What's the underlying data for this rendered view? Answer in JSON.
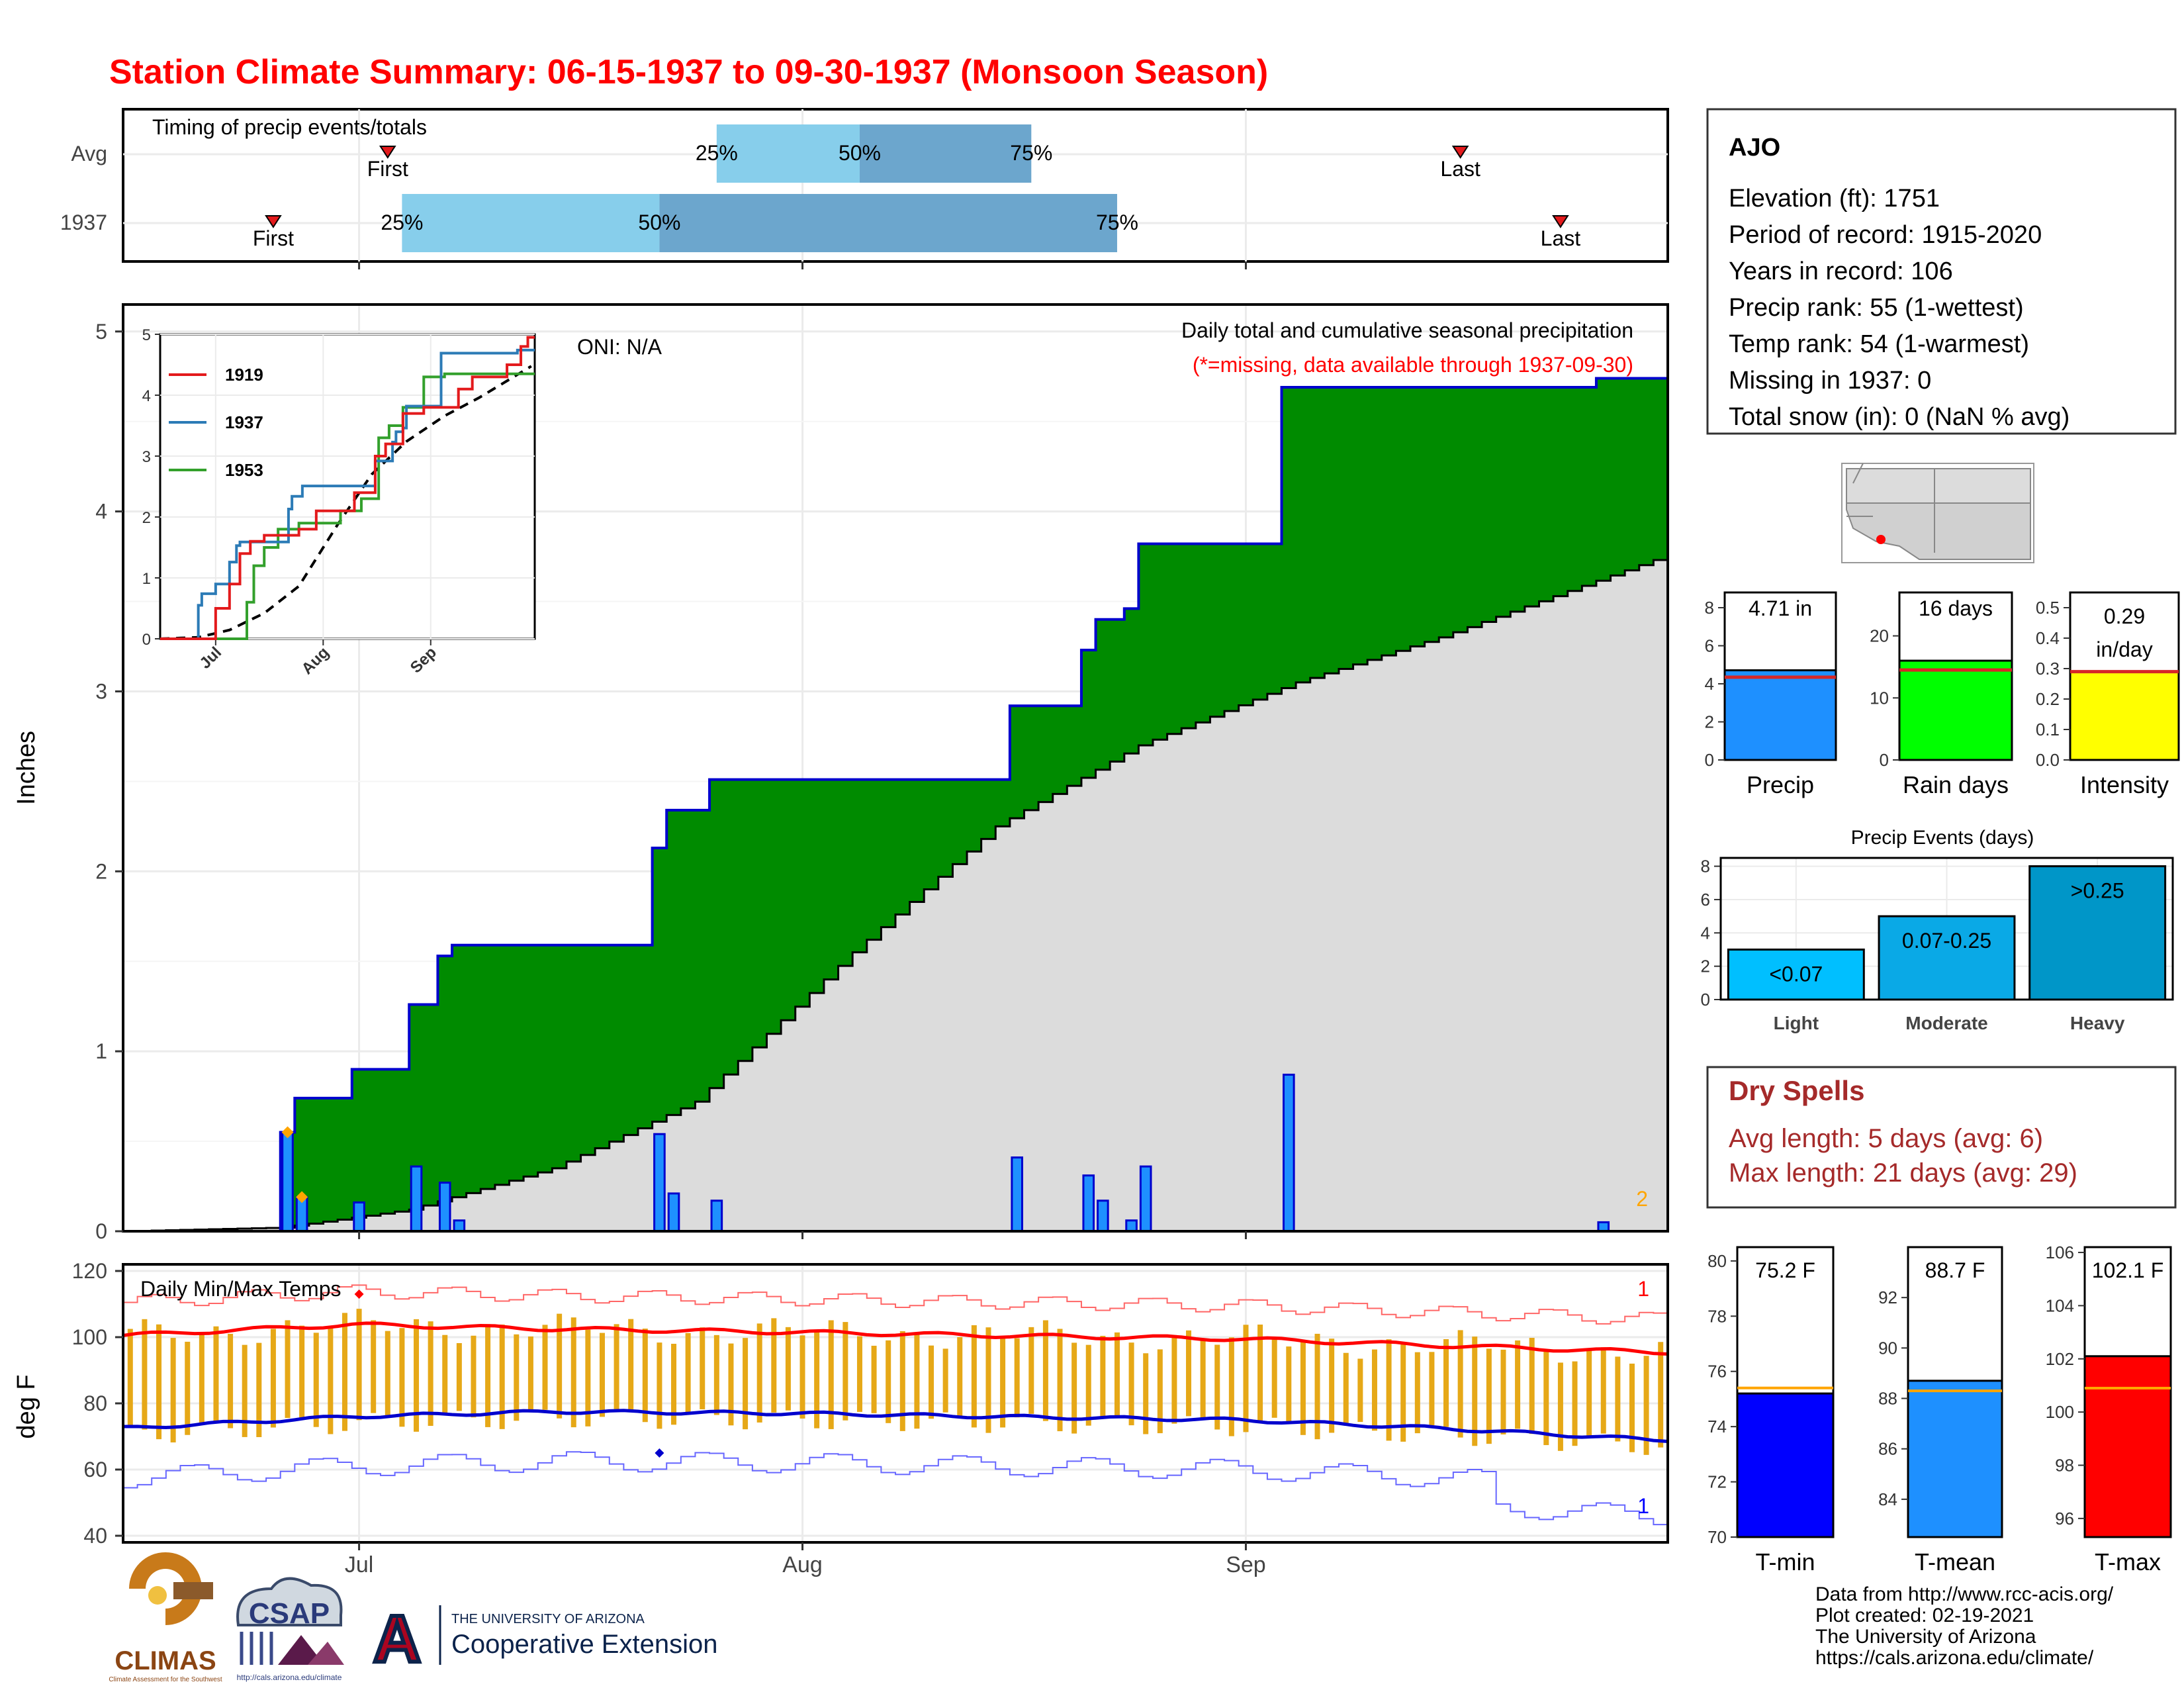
{
  "title": "Station Climate Summary: 06-15-1937 to 09-30-1937 (Monsoon Season)",
  "timing": {
    "label": "Timing of precip events/totals",
    "rows": [
      "Avg",
      "1937"
    ],
    "quartiles": [
      "25%",
      "50%",
      "75%"
    ],
    "first_label": "First",
    "last_label": "Last",
    "avg": {
      "first": "07-03",
      "q25": "07-26",
      "q50": "08-05",
      "q75": "08-17",
      "last": "09-16"
    },
    "y1937": {
      "first": "06-25",
      "q25": "07-04",
      "q50": "07-22",
      "q75": "08-23",
      "last": "09-23"
    }
  },
  "main": {
    "ylabel": "Inches",
    "oni": "ONI: N/A",
    "subtitle": "Daily total and cumulative seasonal precipitation",
    "missing_note": "(*=missing, data available through 1937-09-30)",
    "corner_count": "2",
    "x_ticks": [
      "Jul",
      "Aug",
      "Sep"
    ]
  },
  "inset": {
    "x_ticks": [
      "Jul",
      "Aug",
      "Sep"
    ],
    "legend": [
      {
        "name": "1919",
        "color": "#e31a1c"
      },
      {
        "name": "1937",
        "color": "#2c7bb6"
      },
      {
        "name": "1953",
        "color": "#33a02c"
      }
    ]
  },
  "temps": {
    "title": "Daily Min/Max Temps",
    "ylabel": "deg F",
    "max_count": "1",
    "min_count": "1",
    "x_ticks": [
      "Jul",
      "Aug",
      "Sep"
    ]
  },
  "station": {
    "name": "AJO",
    "lines": [
      "Elevation (ft): 1751",
      "Period of record: 1915-2020",
      "Years in record: 106",
      "Precip rank: 55 (1-wettest)",
      "Temp rank: 54 (1-warmest)",
      "Missing in 1937: 0",
      "Total snow (in): 0 (NaN % avg)"
    ]
  },
  "summary_bars": [
    {
      "label": "Precip",
      "value_label": "4.71 in",
      "value": 4.71,
      "avg": 4.35,
      "ylim": [
        0,
        8.8
      ],
      "ticks": [
        0,
        2,
        4,
        6,
        8
      ],
      "color": "#1e90ff"
    },
    {
      "label": "Rain days",
      "value_label": "16 days",
      "value": 16,
      "avg": 14.5,
      "ylim": [
        0,
        27
      ],
      "ticks": [
        0,
        10,
        20
      ],
      "color": "#00ff00"
    },
    {
      "label": "Intensity",
      "value_label": "0.29 in/day",
      "value": 0.29,
      "avg": 0.29,
      "ylim": [
        0,
        0.55
      ],
      "ticks": [
        "0.0",
        "0.1",
        "0.2",
        "0.3",
        "0.4",
        "0.5"
      ],
      "color": "#ffff00"
    }
  ],
  "precip_events": {
    "title": "Precip Events (days)",
    "categories": [
      "Light",
      "Moderate",
      "Heavy"
    ],
    "labels": [
      "<0.07",
      "0.07-0.25",
      ">0.25"
    ],
    "values": [
      3,
      5,
      8
    ],
    "ylim": [
      0,
      8.5
    ],
    "ticks": [
      0,
      2,
      4,
      6,
      8
    ],
    "colors": [
      "#00bfff",
      "#0aa9e6",
      "#0096c8"
    ]
  },
  "dry_spells": {
    "title": "Dry Spells",
    "avg": "Avg length: 5 days (avg: 6)",
    "max": "Max length: 21 days (avg: 29)"
  },
  "temp_bars": [
    {
      "label": "T-min",
      "value_label": "75.2 F",
      "value": 75.2,
      "avg": 75.4,
      "ylim": [
        70,
        80.5
      ],
      "ticks": [
        70,
        72,
        74,
        76,
        78,
        80
      ],
      "color": "#0000ff"
    },
    {
      "label": "T-mean",
      "value_label": "88.7 F",
      "value": 88.7,
      "avg": 88.3,
      "ylim": [
        82.5,
        94
      ],
      "ticks": [
        84,
        86,
        88,
        90,
        92
      ],
      "color": "#1e90ff"
    },
    {
      "label": "T-max",
      "value_label": "102.1 F",
      "value": 102.1,
      "avg": 100.9,
      "ylim": [
        95.3,
        106.2
      ],
      "ticks": [
        96,
        98,
        100,
        102,
        104,
        106
      ],
      "color": "#ff0000"
    }
  ],
  "credits": [
    "Data from http://www.rcc-acis.org/",
    "Plot created: 02-19-2021",
    "The University of Arizona",
    "https://cals.arizona.edu/climate/"
  ],
  "logos": {
    "climas": "CLIMAS",
    "climas_sub": "Climate Assessment for the Southwest",
    "csap": "CSAP",
    "csap_url": "http://cals.arizona.edu/climate",
    "ua_small": "THE UNIVERSITY OF ARIZONA",
    "ua_big": "Cooperative Extension",
    "ua_letter": "A"
  },
  "chart_data": [
    {
      "type": "area",
      "name": "cumulative-precip",
      "xlabel": "",
      "ylabel": "Inches",
      "ylim": [
        0,
        5.15
      ],
      "x_range": [
        "06-15",
        "09-30"
      ],
      "series": [
        {
          "name": "daily precip",
          "points": [
            [
              "06-26",
              0.55
            ],
            [
              "06-27",
              0.19
            ],
            [
              "07-01",
              0.16
            ],
            [
              "07-05",
              0.36
            ],
            [
              "07-07",
              0.27
            ],
            [
              "07-08",
              0.06
            ],
            [
              "07-22",
              0.54
            ],
            [
              "07-23",
              0.21
            ],
            [
              "07-26",
              0.17
            ],
            [
              "08-16",
              0.41
            ],
            [
              "08-21",
              0.31
            ],
            [
              "08-22",
              0.17
            ],
            [
              "08-24",
              0.06
            ],
            [
              "08-25",
              0.36
            ],
            [
              "09-04",
              0.87
            ],
            [
              "09-26",
              0.05
            ]
          ]
        },
        {
          "name": "cumulative 1937",
          "final": 4.71
        },
        {
          "name": "average cumulative",
          "points": [
            [
              "06-15",
              0
            ],
            [
              "06-26",
              0.02
            ],
            [
              "07-05",
              0.12
            ],
            [
              "07-15",
              0.35
            ],
            [
              "07-25",
              0.72
            ],
            [
              "08-05",
              1.55
            ],
            [
              "08-15",
              2.25
            ],
            [
              "08-25",
              2.7
            ],
            [
              "09-05",
              3.05
            ],
            [
              "09-15",
              3.3
            ],
            [
              "09-30",
              3.73
            ]
          ]
        }
      ]
    },
    {
      "type": "line",
      "name": "inset-cumulative",
      "ylim": [
        0,
        5
      ],
      "series": [
        {
          "name": "1919",
          "final": 4.95
        },
        {
          "name": "1937",
          "final": 4.71
        },
        {
          "name": "1953",
          "final": 4.35
        }
      ]
    },
    {
      "type": "line",
      "name": "daily-temps",
      "ylabel": "deg F",
      "ylim": [
        38,
        122
      ],
      "series": [
        {
          "name": "avg max",
          "points": [
            [
              "06-15",
              100.5
            ],
            [
              "07-01",
              103.8
            ],
            [
              "07-15",
              102.5
            ],
            [
              "08-01",
              101.5
            ],
            [
              "08-15",
              100.5
            ],
            [
              "09-01",
              99.5
            ],
            [
              "09-15",
              97.5
            ],
            [
              "09-30",
              95.5
            ]
          ]
        },
        {
          "name": "avg min",
          "points": [
            [
              "06-15",
              72.5
            ],
            [
              "07-01",
              76.0
            ],
            [
              "07-15",
              77.5
            ],
            [
              "08-01",
              77.0
            ],
            [
              "08-15",
              76.0
            ],
            [
              "09-01",
              75.0
            ],
            [
              "09-15",
              72.5
            ],
            [
              "09-30",
              69.0
            ]
          ]
        }
      ]
    }
  ]
}
